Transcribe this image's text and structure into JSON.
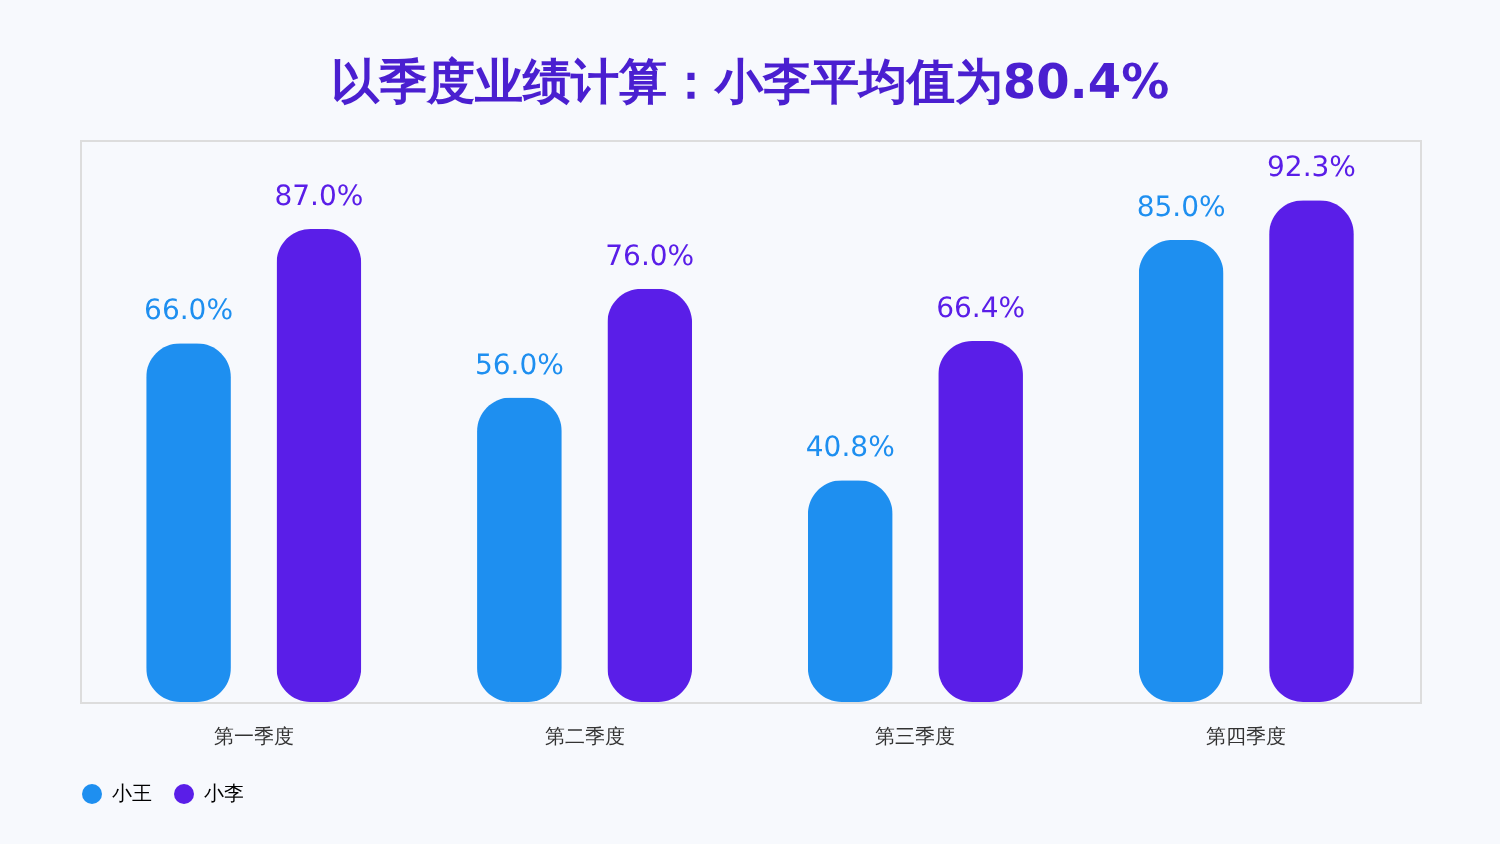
{
  "chart_data": {
    "type": "bar",
    "title": "以季度业绩计算：小李平均值为80.4%",
    "categories": [
      "第一季度",
      "第二季度",
      "第三季度",
      "第四季度"
    ],
    "series": [
      {
        "name": "小王",
        "color": "#1e8ff0",
        "values": [
          66.0,
          56.0,
          40.8,
          85.0
        ],
        "value_labels": [
          "66.0%",
          "56.0%",
          "40.8%",
          "85.0%"
        ]
      },
      {
        "name": "小李",
        "color": "#5a1ee8",
        "values": [
          87.0,
          76.0,
          66.4,
          92.3
        ],
        "value_labels": [
          "87.0%",
          "76.0%",
          "66.4%",
          "92.3%"
        ]
      }
    ],
    "legend": "bottom",
    "grid": false
  }
}
